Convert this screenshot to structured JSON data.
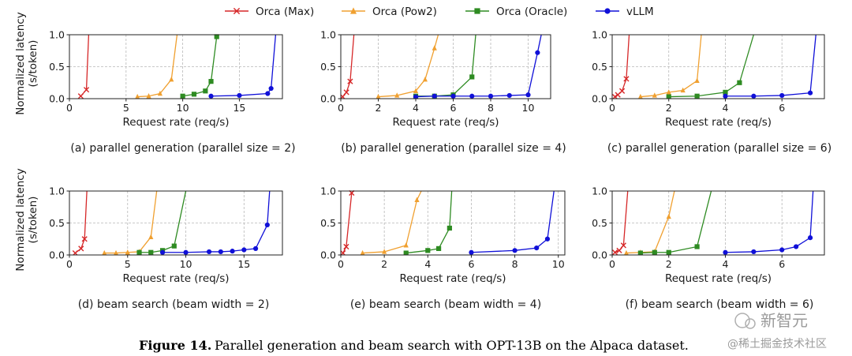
{
  "legend": [
    {
      "name": "Orca (Max)",
      "color": "#d62728",
      "marker": "x"
    },
    {
      "name": "Orca (Pow2)",
      "color": "#f0a030",
      "marker": "triangle"
    },
    {
      "name": "Orca (Oracle)",
      "color": "#2e8b22",
      "marker": "square"
    },
    {
      "name": "vLLM",
      "color": "#1010d8",
      "marker": "circle"
    }
  ],
  "figure_caption": {
    "label": "Figure 14.",
    "text": "Parallel generation and beam search with OPT-13B on the Alpaca dataset."
  },
  "watermark": {
    "brand": "新智元",
    "site": "@稀土掘金技术社区"
  },
  "chart_data": [
    {
      "id": "a",
      "type": "line",
      "caption": "(a) parallel generation (parallel size = 2)",
      "xlabel": "Request rate (req/s)",
      "ylabel": "Normalized latency\n(s/token)",
      "xlim": [
        0,
        18.8
      ],
      "ylim": [
        0,
        1.0
      ],
      "xticks": [
        0,
        5,
        10,
        15
      ],
      "yticks": [
        0.0,
        0.5,
        1.0
      ],
      "grid": true,
      "series": [
        {
          "name": "Orca (Max)",
          "x": [
            1.0,
            1.5,
            1.7
          ],
          "y": [
            0.04,
            0.14,
            1.0
          ]
        },
        {
          "name": "Orca (Pow2)",
          "x": [
            6.0,
            7.0,
            8.0,
            9.0,
            9.5
          ],
          "y": [
            0.03,
            0.04,
            0.08,
            0.3,
            1.0
          ]
        },
        {
          "name": "Orca (Oracle)",
          "x": [
            10.0,
            11.0,
            12.0,
            12.5,
            13.0,
            13.2
          ],
          "y": [
            0.04,
            0.07,
            0.12,
            0.27,
            0.97,
            1.0
          ]
        },
        {
          "name": "vLLM",
          "x": [
            12.5,
            15.0,
            17.5,
            17.8,
            18.2
          ],
          "y": [
            0.04,
            0.05,
            0.08,
            0.16,
            1.0
          ]
        }
      ]
    },
    {
      "id": "b",
      "type": "line",
      "caption": "(b) parallel generation (parallel size = 4)",
      "xlabel": "Request rate (req/s)",
      "ylabel": "",
      "xlim": [
        0,
        11.2
      ],
      "ylim": [
        0,
        1.0
      ],
      "xticks": [
        0,
        2,
        4,
        6,
        8,
        10
      ],
      "yticks": [
        0.0,
        0.5,
        1.0
      ],
      "grid": true,
      "series": [
        {
          "name": "Orca (Max)",
          "x": [
            0.1,
            0.3,
            0.5,
            0.7
          ],
          "y": [
            0.03,
            0.1,
            0.27,
            1.0
          ]
        },
        {
          "name": "Orca (Pow2)",
          "x": [
            2.0,
            3.0,
            4.0,
            4.5,
            5.0,
            5.2
          ],
          "y": [
            0.03,
            0.05,
            0.12,
            0.3,
            0.79,
            1.0
          ]
        },
        {
          "name": "Orca (Oracle)",
          "x": [
            4.0,
            5.0,
            6.0,
            7.0,
            7.2
          ],
          "y": [
            0.04,
            0.04,
            0.06,
            0.34,
            1.0
          ]
        },
        {
          "name": "vLLM",
          "x": [
            4.0,
            5.0,
            6.0,
            7.0,
            8.0,
            9.0,
            10.0,
            10.5,
            10.7
          ],
          "y": [
            0.03,
            0.04,
            0.04,
            0.04,
            0.04,
            0.05,
            0.06,
            0.72,
            1.0
          ]
        }
      ]
    },
    {
      "id": "c",
      "type": "line",
      "caption": "(c) parallel generation (parallel size = 6)",
      "xlabel": "Request rate (req/s)",
      "ylabel": "",
      "xlim": [
        0,
        7.5
      ],
      "ylim": [
        0,
        1.0
      ],
      "xticks": [
        0,
        2,
        4,
        6
      ],
      "yticks": [
        0.0,
        0.5,
        1.0
      ],
      "grid": true,
      "series": [
        {
          "name": "Orca (Max)",
          "x": [
            0.1,
            0.2,
            0.35,
            0.5,
            0.6
          ],
          "y": [
            0.03,
            0.06,
            0.12,
            0.31,
            1.0
          ]
        },
        {
          "name": "Orca (Pow2)",
          "x": [
            1.0,
            1.5,
            2.0,
            2.5,
            3.0,
            3.15
          ],
          "y": [
            0.03,
            0.05,
            0.1,
            0.13,
            0.28,
            1.0
          ]
        },
        {
          "name": "Orca (Oracle)",
          "x": [
            2.0,
            3.0,
            4.0,
            4.5,
            5.0
          ],
          "y": [
            0.03,
            0.04,
            0.1,
            0.25,
            1.0
          ]
        },
        {
          "name": "vLLM",
          "x": [
            4.0,
            5.0,
            6.0,
            7.0,
            7.2
          ],
          "y": [
            0.04,
            0.04,
            0.05,
            0.09,
            1.0
          ]
        }
      ]
    },
    {
      "id": "d",
      "type": "line",
      "caption": "(d) beam search (beam width = 2)",
      "xlabel": "Request rate (req/s)",
      "ylabel": "Normalized latency\n(s/token)",
      "xlim": [
        0,
        18.3
      ],
      "ylim": [
        0,
        1.0
      ],
      "xticks": [
        0,
        5,
        10,
        15
      ],
      "yticks": [
        0.0,
        0.5,
        1.0
      ],
      "grid": true,
      "series": [
        {
          "name": "Orca (Max)",
          "x": [
            0.5,
            1.0,
            1.3,
            1.5
          ],
          "y": [
            0.03,
            0.1,
            0.25,
            1.0
          ]
        },
        {
          "name": "Orca (Pow2)",
          "x": [
            3.0,
            4.0,
            5.0,
            6.0,
            7.0,
            7.5
          ],
          "y": [
            0.03,
            0.03,
            0.04,
            0.05,
            0.28,
            1.0
          ]
        },
        {
          "name": "Orca (Oracle)",
          "x": [
            6.0,
            7.0,
            8.0,
            9.0,
            10.0
          ],
          "y": [
            0.04,
            0.04,
            0.07,
            0.14,
            1.0
          ]
        },
        {
          "name": "vLLM",
          "x": [
            8.0,
            10.0,
            12.0,
            13.0,
            14.0,
            15.0,
            16.0,
            17.0,
            17.2
          ],
          "y": [
            0.04,
            0.04,
            0.05,
            0.05,
            0.06,
            0.08,
            0.1,
            0.47,
            1.0
          ]
        }
      ]
    },
    {
      "id": "e",
      "type": "line",
      "caption": "(e) beam search (beam width = 4)",
      "xlabel": "Request rate (req/s)",
      "ylabel": "",
      "xlim": [
        0,
        10.3
      ],
      "ylim": [
        0,
        1.0
      ],
      "xticks": [
        0,
        2,
        4,
        6,
        8,
        10
      ],
      "yticks": [
        0.0,
        0.5,
        1.0
      ],
      "grid": true,
      "series": [
        {
          "name": "Orca (Max)",
          "x": [
            0.1,
            0.25,
            0.5,
            0.6
          ],
          "y": [
            0.03,
            0.13,
            0.97,
            1.0
          ]
        },
        {
          "name": "Orca (Pow2)",
          "x": [
            1.0,
            2.0,
            3.0,
            3.5,
            3.7
          ],
          "y": [
            0.03,
            0.05,
            0.15,
            0.86,
            1.0
          ]
        },
        {
          "name": "Orca (Oracle)",
          "x": [
            3.0,
            4.0,
            4.5,
            5.0,
            5.1
          ],
          "y": [
            0.03,
            0.07,
            0.1,
            0.42,
            1.0
          ]
        },
        {
          "name": "vLLM",
          "x": [
            6.0,
            8.0,
            9.0,
            9.5,
            9.8
          ],
          "y": [
            0.04,
            0.07,
            0.11,
            0.25,
            1.0
          ]
        }
      ]
    },
    {
      "id": "f",
      "type": "line",
      "caption": "(f) beam search (beam width = 6)",
      "xlabel": "Request rate (req/s)",
      "ylabel": "",
      "xlim": [
        0,
        7.5
      ],
      "ylim": [
        0,
        1.0
      ],
      "xticks": [
        0,
        2,
        4,
        6
      ],
      "yticks": [
        0.0,
        0.5,
        1.0
      ],
      "grid": true,
      "series": [
        {
          "name": "Orca (Max)",
          "x": [
            0.1,
            0.25,
            0.4,
            0.55
          ],
          "y": [
            0.04,
            0.07,
            0.15,
            1.0
          ]
        },
        {
          "name": "Orca (Pow2)",
          "x": [
            0.5,
            1.0,
            1.5,
            2.0,
            2.2
          ],
          "y": [
            0.03,
            0.04,
            0.05,
            0.6,
            1.0
          ]
        },
        {
          "name": "Orca (Oracle)",
          "x": [
            1.0,
            1.5,
            2.0,
            3.0,
            3.5
          ],
          "y": [
            0.03,
            0.04,
            0.04,
            0.13,
            1.0
          ]
        },
        {
          "name": "vLLM",
          "x": [
            4.0,
            5.0,
            6.0,
            6.5,
            7.0,
            7.1
          ],
          "y": [
            0.04,
            0.05,
            0.08,
            0.13,
            0.27,
            1.0
          ]
        }
      ]
    }
  ]
}
